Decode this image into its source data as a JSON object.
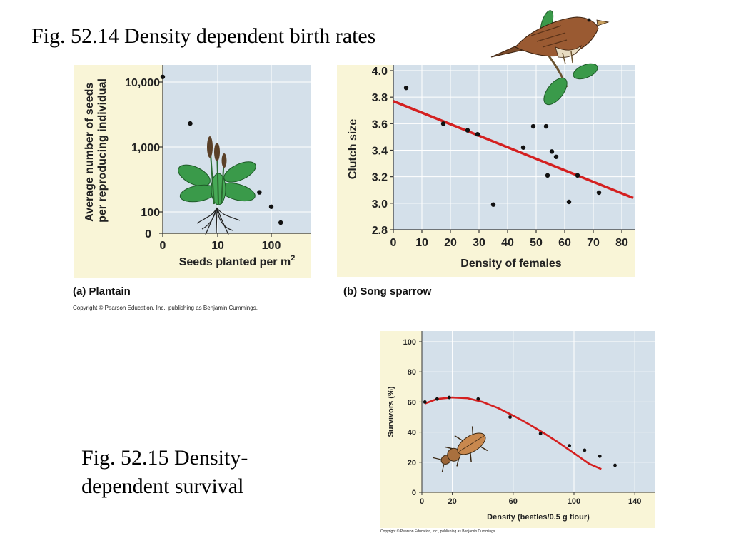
{
  "title": "Fig. 52.14  Density dependent birth rates",
  "caption_52_15": [
    "Fig. 52.15 Density-",
    "dependent survival"
  ],
  "copyright_top": "Copyright © Pearson Education, Inc., publishing as Benjamin Cummings.",
  "copyright_bottom": "Copyright © Pearson Education, Inc., publishing as Benjamin Cummings.",
  "chart_data": [
    {
      "type": "scatter",
      "panel_label": "(a) Plantain",
      "xlabel": "Seeds planted per m",
      "xlabel_sup": "2",
      "ylabel_lines": [
        "Average number of seeds",
        "per reproducing individual"
      ],
      "x_ticks": [
        "0",
        "10",
        "100"
      ],
      "y_ticks": [
        "0",
        "100",
        "1,000",
        "10,000"
      ],
      "points": [
        {
          "x": 0,
          "y": 12000
        },
        {
          "x": 5,
          "y": 2300
        },
        {
          "x": 60,
          "y": 200
        },
        {
          "x": 100,
          "y": 120
        },
        {
          "x": 150,
          "y": 50
        }
      ]
    },
    {
      "type": "scatter",
      "panel_label": "(b) Song sparrow",
      "xlabel": "Density of females",
      "ylabel": "Clutch size",
      "xlim": [
        0,
        80
      ],
      "ylim": [
        2.8,
        4.0
      ],
      "x_ticks": [
        "0",
        "10",
        "20",
        "30",
        "40",
        "50",
        "60",
        "70",
        "80"
      ],
      "y_ticks": [
        "2.8",
        "3.0",
        "3.2",
        "3.4",
        "3.6",
        "3.8",
        "4.0"
      ],
      "points": [
        {
          "x": 4.5,
          "y": 3.87
        },
        {
          "x": 17.5,
          "y": 3.6
        },
        {
          "x": 26,
          "y": 3.55
        },
        {
          "x": 29.5,
          "y": 3.52
        },
        {
          "x": 35,
          "y": 2.99
        },
        {
          "x": 45.5,
          "y": 3.42
        },
        {
          "x": 49,
          "y": 3.58
        },
        {
          "x": 53.5,
          "y": 3.58
        },
        {
          "x": 54,
          "y": 3.21
        },
        {
          "x": 55.5,
          "y": 3.39
        },
        {
          "x": 57,
          "y": 3.35
        },
        {
          "x": 61.5,
          "y": 3.01
        },
        {
          "x": 64.5,
          "y": 3.21
        },
        {
          "x": 72,
          "y": 3.08
        }
      ],
      "fit_line": {
        "x": [
          0,
          84
        ],
        "y": [
          3.77,
          3.04
        ]
      },
      "line_color": "#d42020"
    },
    {
      "type": "scatter",
      "panel_label": "",
      "xlabel": "Density (beetles/0.5 g flour)",
      "ylabel": "Survivors (%)",
      "xlim": [
        0,
        150
      ],
      "ylim": [
        0,
        100
      ],
      "x_ticks": [
        0,
        20,
        60,
        100,
        140
      ],
      "y_ticks": [
        0,
        20,
        40,
        60,
        80,
        100
      ],
      "points": [
        {
          "x": 2,
          "y": 60
        },
        {
          "x": 10,
          "y": 62
        },
        {
          "x": 18,
          "y": 63
        },
        {
          "x": 37,
          "y": 62
        },
        {
          "x": 58,
          "y": 50
        },
        {
          "x": 78,
          "y": 39
        },
        {
          "x": 97,
          "y": 31
        },
        {
          "x": 107,
          "y": 28
        },
        {
          "x": 117,
          "y": 24
        },
        {
          "x": 127,
          "y": 18
        }
      ],
      "fit_curve": {
        "x": [
          2,
          10,
          20,
          30,
          40,
          50,
          60,
          70,
          80,
          90,
          100,
          110,
          118
        ],
        "y": [
          59,
          62,
          63,
          62.5,
          60,
          56,
          51,
          45.5,
          39.5,
          33,
          26,
          19,
          15.5
        ]
      },
      "line_color": "#d42020"
    }
  ],
  "colors": {
    "plot_bg": "#d4e0ea",
    "panel_bg": "#f9f5d7",
    "fit_red": "#d42020",
    "leaf_green": "#3a9a4a"
  },
  "decorations": [
    "sparrow-illustration",
    "plantain-illustration",
    "beetle-illustration"
  ]
}
